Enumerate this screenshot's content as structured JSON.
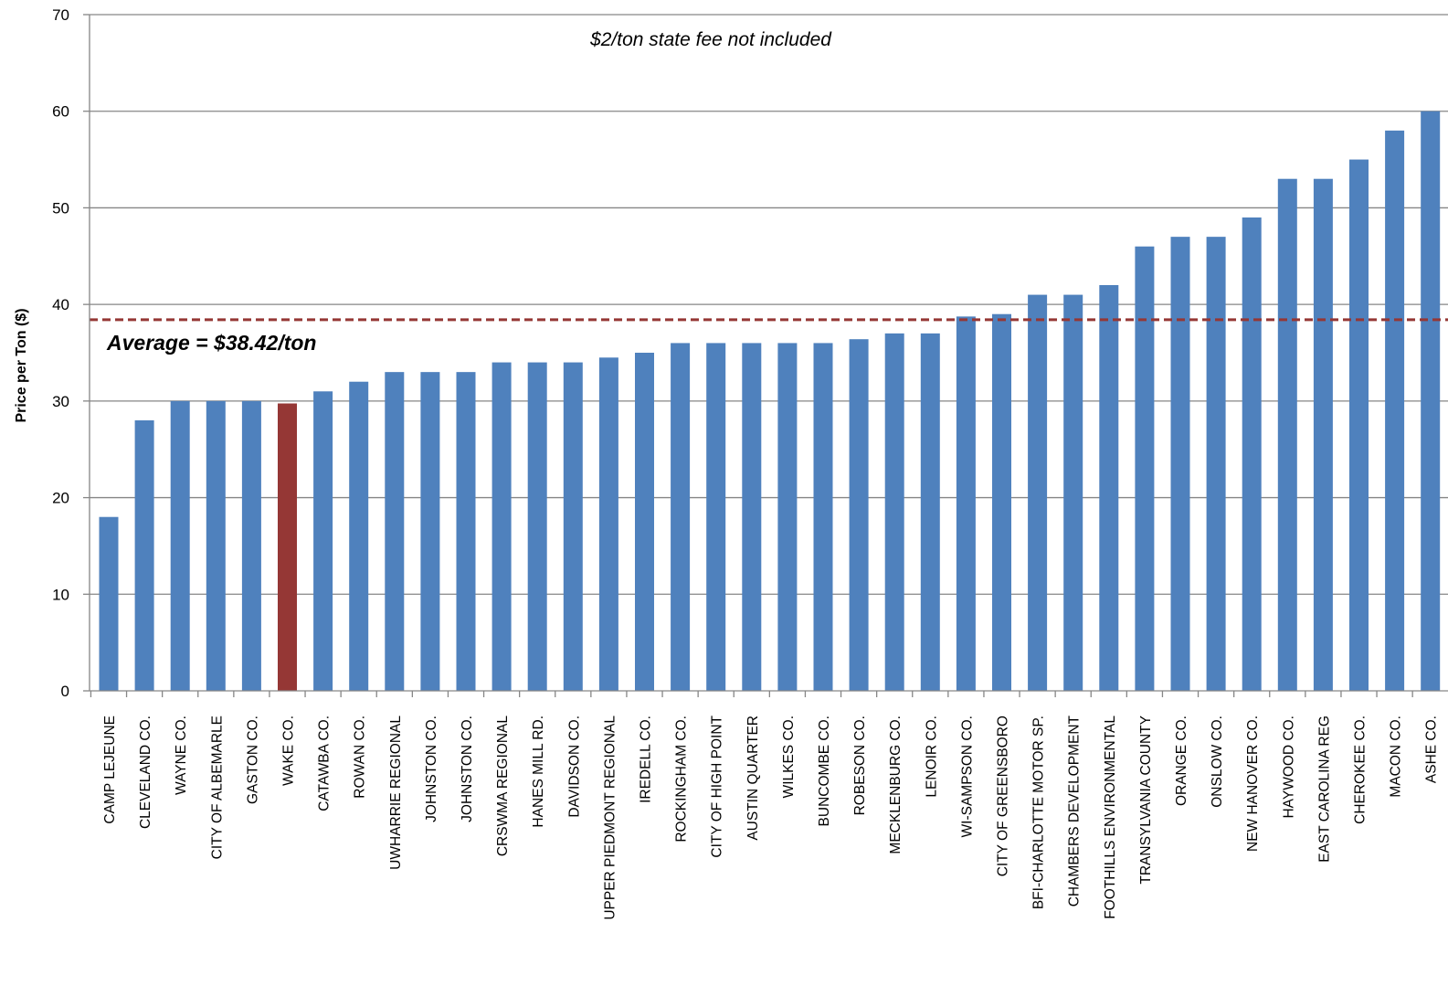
{
  "chart_data": {
    "type": "bar",
    "title": "",
    "xlabel": "",
    "ylabel": "Price per Ton ($)",
    "ylim": [
      0,
      70
    ],
    "yticks": [
      0,
      10,
      20,
      30,
      40,
      50,
      60,
      70
    ],
    "grid": true,
    "legend": "none",
    "colors": {
      "bar": "#4f81bd",
      "highlight": "#953735",
      "average_line": "#953735",
      "grid": "#868686"
    },
    "highlight_category": "WAKE CO.",
    "average": {
      "value": 38.42,
      "label": "Average = $38.42/ton"
    },
    "annotation": "$2/ton state fee not included",
    "categories": [
      "CAMP LEJEUNE",
      "CLEVELAND CO.",
      "WAYNE CO.",
      "CITY OF ALBEMARLE",
      "GASTON CO.",
      "WAKE CO.",
      "CATAWBA CO.",
      "ROWAN CO.",
      "UWHARRIE REGIONAL",
      "JOHNSTON CO.",
      "JOHNSTON CO.",
      "CRSWMA REGIONAL",
      "HANES MILL RD.",
      "DAVIDSON CO.",
      "UPPER PIEDMONT REGIONAL",
      "IREDELL CO.",
      "ROCKINGHAM CO.",
      "CITY OF HIGH POINT",
      "AUSTIN QUARTER",
      "WILKES CO.",
      "BUNCOMBE CO.",
      "ROBESON CO.",
      "MECKLENBURG CO.",
      "LENOIR CO.",
      "WI-SAMPSON CO.",
      "CITY OF GREENSBORO",
      "BFI-CHARLOTTE MOTOR SP.",
      "CHAMBERS DEVELOPMENT",
      "FOOTHILLS ENVIRONMENTAL",
      "TRANSYLVANIA COUNTY",
      "ORANGE CO.",
      "ONSLOW CO.",
      "NEW HANOVER CO.",
      "HAYWOOD CO.",
      "EAST CAROLINA REG",
      "CHEROKEE CO.",
      "MACON CO.",
      "ASHE CO."
    ],
    "values": [
      18,
      28,
      30,
      30,
      30,
      29.75,
      31,
      32,
      33,
      33,
      33,
      34,
      34,
      34,
      34.5,
      35,
      36,
      36,
      36,
      36,
      36,
      36.4,
      37,
      37,
      38.75,
      39,
      41,
      41,
      42,
      46,
      47,
      47,
      49,
      53,
      53,
      55,
      58,
      60
    ]
  }
}
